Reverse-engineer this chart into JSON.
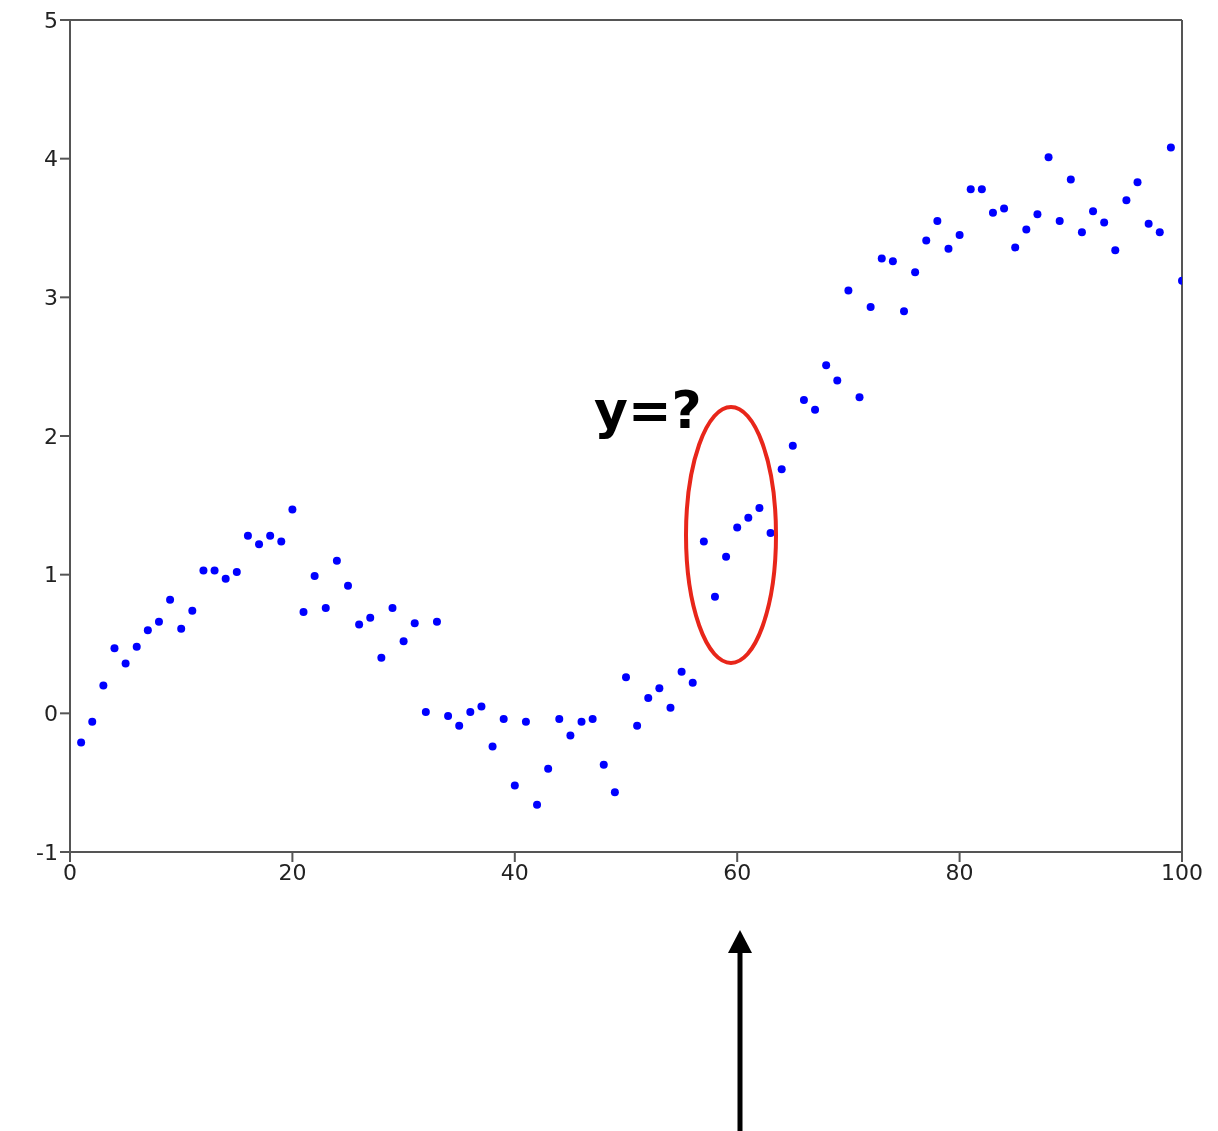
{
  "chart_data": {
    "type": "scatter",
    "x": [
      1,
      2,
      3,
      4,
      5,
      6,
      7,
      8,
      9,
      10,
      11,
      12,
      13,
      14,
      15,
      16,
      17,
      18,
      19,
      20,
      21,
      22,
      23,
      24,
      25,
      26,
      27,
      28,
      29,
      30,
      31,
      32,
      33,
      34,
      35,
      36,
      37,
      38,
      39,
      40,
      41,
      42,
      43,
      44,
      45,
      46,
      47,
      48,
      49,
      50,
      51,
      52,
      53,
      54,
      55,
      56,
      57,
      58,
      59,
      60,
      61,
      62,
      63,
      64,
      65,
      66,
      67,
      68,
      69,
      70,
      71,
      72,
      73,
      74,
      75,
      76,
      77,
      78,
      79,
      80,
      81,
      82,
      83,
      84,
      85,
      86,
      87,
      88,
      89,
      90,
      91,
      92,
      93,
      94,
      95,
      96,
      97,
      98,
      99,
      100
    ],
    "values": [
      -0.21,
      -0.06,
      0.2,
      0.47,
      0.36,
      0.48,
      0.6,
      0.66,
      0.82,
      0.61,
      0.74,
      1.03,
      1.03,
      0.97,
      1.02,
      1.28,
      1.22,
      1.28,
      1.24,
      1.47,
      0.73,
      0.99,
      0.76,
      1.1,
      0.92,
      0.64,
      0.69,
      0.4,
      0.76,
      0.52,
      0.65,
      0.01,
      0.66,
      -0.02,
      -0.09,
      0.01,
      0.05,
      -0.24,
      -0.04,
      -0.52,
      -0.06,
      -0.66,
      -0.4,
      -0.04,
      -0.16,
      -0.06,
      -0.04,
      -0.37,
      -0.57,
      0.26,
      -0.09,
      0.11,
      0.18,
      0.04,
      0.3,
      0.22,
      1.24,
      0.84,
      1.13,
      1.34,
      1.41,
      1.48,
      1.3,
      1.76,
      1.93,
      2.26,
      2.19,
      2.51,
      2.4,
      3.05,
      2.28,
      2.93,
      3.28,
      3.26,
      2.9,
      3.18,
      3.41,
      3.55,
      3.35,
      3.45,
      3.78,
      3.78,
      3.61,
      3.64,
      3.36,
      3.49,
      3.6,
      4.01,
      3.55,
      3.85,
      3.47,
      3.62,
      3.54,
      3.34,
      3.7,
      3.83,
      3.53,
      3.47,
      4.08,
      3.12
    ],
    "color": "#0000ff",
    "marker": "circle",
    "xlim": [
      0,
      100
    ],
    "xticks": [
      0,
      20,
      40,
      60,
      80,
      100
    ],
    "ylim": [
      -1,
      5
    ],
    "yticks": [
      -1,
      0,
      1,
      2,
      3,
      4,
      5
    ],
    "annotations": [
      "y=?"
    ]
  }
}
